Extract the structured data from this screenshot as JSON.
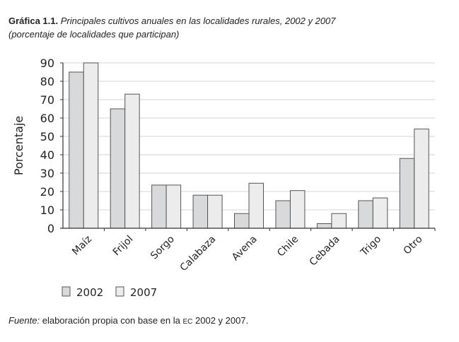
{
  "title": {
    "label": "Gráfica 1.1.",
    "text": "Principales cultivos anuales en las localidades rurales, 2002 y 2007",
    "subtitle": "(porcentaje de localidades que participan)"
  },
  "footer": {
    "source_label": "Fuente:",
    "text_before": "elaboración propia con base en la",
    "abbrev": "EC",
    "text_after": "2002 y 2007."
  },
  "colors": {
    "s2002": "#d8d9db",
    "s2007": "#ececed",
    "stroke": "#555555",
    "grid": "#dedede"
  },
  "chart_data": {
    "type": "bar",
    "title": "Principales cultivos anuales en las localidades rurales, 2002 y 2007",
    "xlabel": "",
    "ylabel": "Porcentaje",
    "ylim": [
      0,
      90
    ],
    "yticks": [
      0,
      10,
      20,
      30,
      40,
      50,
      60,
      70,
      80,
      90
    ],
    "grid": true,
    "legend_position": "bottom-left",
    "categories": [
      "Maíz",
      "Frijol",
      "Sorgo",
      "Calabaza",
      "Avena",
      "Chile",
      "Cebada",
      "Trigo",
      "Otro"
    ],
    "series": [
      {
        "name": "2002",
        "values": [
          85,
          65,
          23.5,
          18,
          8,
          15,
          2.5,
          15,
          38
        ]
      },
      {
        "name": "2007",
        "values": [
          90,
          73,
          23.5,
          18,
          24.5,
          20.5,
          8,
          16.5,
          54
        ]
      }
    ]
  }
}
